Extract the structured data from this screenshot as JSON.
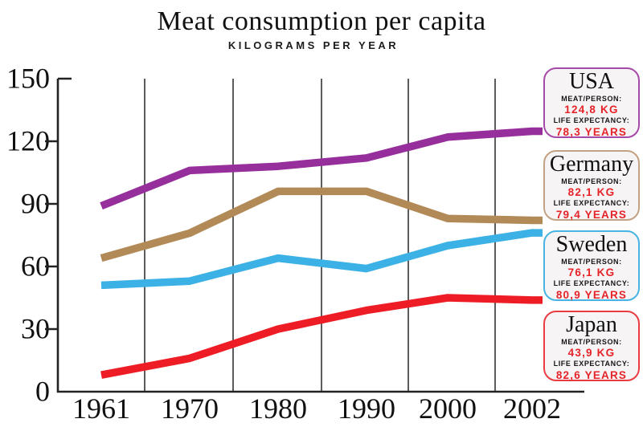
{
  "title": "Meat consumption per capita",
  "subtitle": "KILOGRAMS PER YEAR",
  "chart_data": {
    "type": "line",
    "x": [
      1961,
      1970,
      1980,
      1990,
      2000,
      2002
    ],
    "x_tick_labels": [
      "1961",
      "1970",
      "1980",
      "1990",
      "2000",
      "2002"
    ],
    "y_tick_labels": [
      "150",
      "120",
      "90",
      "60",
      "30",
      "0"
    ],
    "y_ticks": [
      150,
      120,
      90,
      60,
      30,
      0
    ],
    "ylim": [
      0,
      150
    ],
    "title": "Meat consumption per capita",
    "ylabel": "KILOGRAMS PER YEAR",
    "xlabel": "",
    "grid": "vertical-only",
    "legend_position": "right",
    "series": [
      {
        "name": "USA",
        "color": "#962e9c",
        "values": [
          89,
          106,
          108,
          112,
          122,
          124.8
        ]
      },
      {
        "name": "Germany",
        "color": "#b18a58",
        "values": [
          64,
          76,
          96,
          96,
          83,
          82.1
        ]
      },
      {
        "name": "Sweden",
        "color": "#3bb1e5",
        "values": [
          51,
          53,
          64,
          59,
          70,
          76.1
        ]
      },
      {
        "name": "Japan",
        "color": "#ee1c25",
        "values": [
          8,
          16,
          30,
          39,
          45,
          43.9
        ]
      }
    ]
  },
  "legend": {
    "meat_label": "MEAT/PERSON:",
    "life_label": "LIFE EXPECTANCY:",
    "countries": [
      {
        "name": "USA",
        "meat": "124,8 KG",
        "life": "78,3 YEARS",
        "border_color": "#a44aa9"
      },
      {
        "name": "Germany",
        "meat": "82,1 KG",
        "life": "79,4 YEARS",
        "border_color": "#c2a284"
      },
      {
        "name": "Sweden",
        "meat": "76,1 KG",
        "life": "80,9 YEARS",
        "border_color": "#49b3e3"
      },
      {
        "name": "Japan",
        "meat": "43,9 KG",
        "life": "82,6 YEARS",
        "border_color": "#ea3b41"
      }
    ]
  },
  "colors": {
    "grid": "#4a4a4a",
    "axis": "#222222",
    "value_red": "#e52329",
    "text": "#111111",
    "card_background": "#f7f4f5"
  }
}
